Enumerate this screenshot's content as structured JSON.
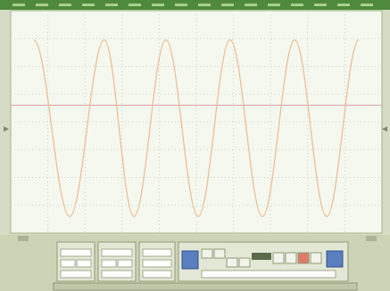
{
  "chart_data": {
    "type": "line",
    "x": [
      0.62,
      1.59,
      2.52,
      3.32,
      4.18,
      5.05,
      5.91,
      6.78,
      7.65,
      8.51,
      9.38
    ],
    "series": [
      {
        "color": "#e9bf98",
        "values": [
          2.95,
          -3.4,
          2.95,
          -3.4,
          2.95,
          -3.4,
          2.95,
          -3.4,
          2.95,
          -3.4,
          2.95
        ]
      }
    ],
    "xlim": [
      0,
      10
    ],
    "ylim": [
      -4,
      4
    ],
    "trigger_level": 0.6,
    "trigger_color": "#d9a0a0",
    "grid": true
  }
}
